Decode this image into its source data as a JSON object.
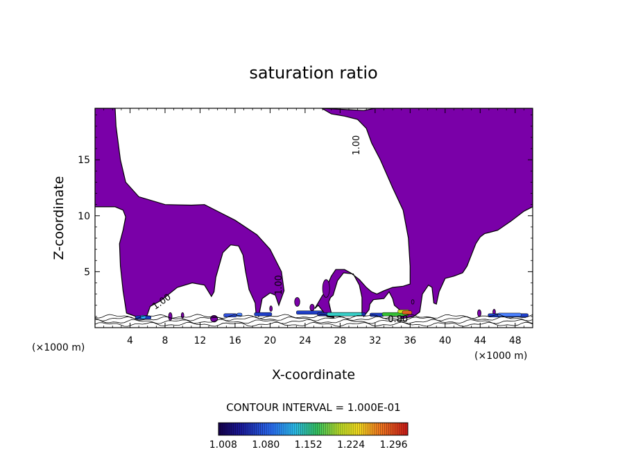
{
  "chart_data": {
    "type": "contour",
    "title": "saturation ratio",
    "xlabel": "X-coordinate",
    "ylabel": "Z-coordinate",
    "x_unit_label": "(×1000 m)",
    "x_unit_label_right": "(×1000 m)",
    "xlim": [
      0,
      50
    ],
    "ylim": [
      0,
      19.6
    ],
    "x_ticks": [
      4,
      8,
      12,
      16,
      20,
      24,
      28,
      32,
      36,
      40,
      44,
      48
    ],
    "x_tick_labels": [
      "4",
      "8",
      "12",
      "16",
      "20",
      "24",
      "28",
      "32",
      "36",
      "40",
      "44",
      "48"
    ],
    "y_ticks": [
      5,
      10,
      15
    ],
    "y_tick_labels": [
      "5",
      "10",
      "15"
    ],
    "contour_interval_text": "CONTOUR INTERVAL = 1.000E-01",
    "contour_labels": [
      {
        "text": "1.00",
        "x": 30.2,
        "z": 16.3,
        "angle": -90
      },
      {
        "text": "1.00",
        "x": 21.3,
        "z": 3.8,
        "angle": -90
      },
      {
        "text": "1.00",
        "x": 7.8,
        "z": 2.1,
        "angle": -35
      },
      {
        "text": "0.80",
        "x": 34.6,
        "z": 0.5,
        "angle": 0
      }
    ],
    "fill_color": "#7a00a8",
    "colorbar": {
      "tick_labels": [
        "1.008",
        "1.080",
        "1.152",
        "1.224",
        "1.296"
      ],
      "range": [
        1.0,
        1.32
      ]
    },
    "regions": [
      {
        "name": "supersaturated",
        "level": 1.0,
        "outline": [
          [
            0.0,
            19.6
          ],
          [
            2.3,
            19.6
          ],
          [
            2.4,
            18.0
          ],
          [
            2.9,
            15.0
          ],
          [
            3.5,
            13.0
          ],
          [
            5.0,
            11.7
          ],
          [
            8.0,
            11.0
          ],
          [
            11.0,
            10.95
          ],
          [
            12.5,
            11.0
          ],
          [
            13.5,
            10.6
          ],
          [
            16.0,
            9.6
          ],
          [
            18.5,
            8.3
          ],
          [
            20.0,
            7.0
          ],
          [
            21.3,
            5.0
          ],
          [
            21.6,
            3.3
          ],
          [
            21.0,
            2.0
          ],
          [
            20.6,
            2.9
          ],
          [
            20.0,
            3.1
          ],
          [
            19.1,
            2.6
          ],
          [
            18.7,
            1.0
          ],
          [
            18.4,
            1.2
          ],
          [
            18.3,
            2.2
          ],
          [
            17.6,
            3.4
          ],
          [
            17.2,
            5.0
          ],
          [
            16.9,
            6.5
          ],
          [
            16.4,
            7.3
          ],
          [
            15.5,
            7.4
          ],
          [
            14.6,
            6.7
          ],
          [
            13.8,
            4.5
          ],
          [
            13.6,
            3.2
          ],
          [
            13.3,
            2.8
          ],
          [
            12.5,
            3.8
          ],
          [
            11.1,
            4.0
          ],
          [
            9.4,
            3.6
          ],
          [
            7.5,
            2.4
          ],
          [
            6.3,
            1.9
          ],
          [
            5.9,
            1.0
          ],
          [
            5.0,
            0.9
          ],
          [
            3.6,
            1.3
          ],
          [
            3.2,
            3.3
          ],
          [
            2.9,
            5.5
          ],
          [
            2.8,
            7.5
          ],
          [
            3.2,
            8.7
          ],
          [
            3.5,
            9.9
          ],
          [
            3.2,
            10.5
          ],
          [
            2.3,
            10.8
          ],
          [
            0.0,
            10.8
          ]
        ]
      },
      {
        "name": "supersaturated",
        "level": 1.0,
        "outline": [
          [
            25.9,
            19.6
          ],
          [
            30.7,
            19.4
          ],
          [
            32.0,
            19.6
          ],
          [
            50.0,
            19.6
          ],
          [
            50.0,
            10.8
          ],
          [
            49.0,
            10.4
          ],
          [
            47.5,
            9.5
          ],
          [
            46.0,
            8.7
          ],
          [
            45.0,
            8.5
          ],
          [
            44.5,
            8.4
          ],
          [
            44.0,
            8.1
          ],
          [
            43.5,
            7.5
          ],
          [
            43.0,
            6.5
          ],
          [
            42.5,
            5.5
          ],
          [
            42.0,
            4.9
          ],
          [
            41.0,
            4.6
          ],
          [
            40.0,
            4.4
          ],
          [
            39.3,
            3.2
          ],
          [
            39.0,
            2.1
          ],
          [
            38.7,
            2.2
          ],
          [
            38.5,
            3.6
          ],
          [
            38.1,
            3.8
          ],
          [
            37.4,
            3.0
          ],
          [
            37.1,
            1.4
          ],
          [
            36.4,
            1.0
          ],
          [
            35.0,
            0.8
          ],
          [
            34.8,
            1.6
          ],
          [
            34.2,
            2.0
          ],
          [
            34.0,
            2.6
          ],
          [
            33.6,
            3.2
          ],
          [
            33.0,
            2.6
          ],
          [
            31.8,
            2.5
          ],
          [
            31.4,
            2.1
          ],
          [
            31.3,
            1.6
          ],
          [
            30.7,
            1.0
          ],
          [
            30.5,
            1.3
          ],
          [
            30.5,
            2.7
          ],
          [
            30.2,
            3.8
          ],
          [
            29.5,
            4.8
          ],
          [
            28.4,
            4.9
          ],
          [
            27.7,
            4.2
          ],
          [
            27.2,
            2.9
          ],
          [
            26.9,
            2.7
          ],
          [
            26.7,
            2.3
          ],
          [
            27.0,
            1.3
          ],
          [
            27.3,
            0.9
          ],
          [
            26.5,
            1.0
          ],
          [
            26.0,
            1.5
          ],
          [
            25.5,
            2.0
          ],
          [
            25.1,
            1.7
          ],
          [
            26.0,
            2.9
          ],
          [
            26.4,
            3.2
          ],
          [
            26.6,
            3.9
          ],
          [
            27.0,
            4.6
          ],
          [
            27.5,
            5.2
          ],
          [
            28.5,
            5.2
          ],
          [
            29.2,
            4.9
          ],
          [
            30.2,
            4.3
          ],
          [
            31.0,
            3.6
          ],
          [
            31.6,
            3.2
          ],
          [
            32.2,
            3.0
          ],
          [
            33.0,
            3.3
          ],
          [
            34.0,
            3.6
          ],
          [
            35.2,
            3.7
          ],
          [
            36.0,
            3.9
          ],
          [
            36.0,
            5.5
          ],
          [
            35.8,
            8.0
          ],
          [
            35.2,
            10.5
          ],
          [
            34.0,
            12.5
          ],
          [
            32.6,
            15.0
          ],
          [
            31.6,
            16.5
          ],
          [
            31.0,
            17.8
          ],
          [
            30.0,
            18.6
          ],
          [
            28.5,
            18.9
          ],
          [
            27.0,
            19.1
          ]
        ]
      }
    ],
    "patches": [
      {
        "x": 26.4,
        "z": 3.5,
        "w": 0.8,
        "h": 1.6
      },
      {
        "x": 23.1,
        "z": 2.3,
        "w": 0.6,
        "h": 0.8
      },
      {
        "x": 24.8,
        "z": 1.8,
        "w": 0.5,
        "h": 0.6
      },
      {
        "x": 36.3,
        "z": 2.3,
        "w": 0.3,
        "h": 0.4
      },
      {
        "x": 8.6,
        "z": 1.0,
        "w": 0.4,
        "h": 0.7
      },
      {
        "x": 10.0,
        "z": 1.1,
        "w": 0.3,
        "h": 0.5
      },
      {
        "x": 13.6,
        "z": 0.8,
        "w": 0.8,
        "h": 0.6
      },
      {
        "x": 20.1,
        "z": 1.7,
        "w": 0.3,
        "h": 0.5
      },
      {
        "x": 43.9,
        "z": 1.3,
        "w": 0.4,
        "h": 0.6
      },
      {
        "x": 45.6,
        "z": 1.4,
        "w": 0.3,
        "h": 0.5
      }
    ],
    "streaks": [
      {
        "x0": 4.6,
        "x1": 6.4,
        "z": 0.9,
        "color": "#1f3fc8"
      },
      {
        "x0": 5.2,
        "x1": 5.8,
        "z": 0.95,
        "color": "#2ab0ff"
      },
      {
        "x0": 14.7,
        "x1": 16.2,
        "z": 1.1,
        "color": "#3050d8"
      },
      {
        "x0": 16.2,
        "x1": 16.8,
        "z": 1.15,
        "color": "#4a80ff"
      },
      {
        "x0": 18.2,
        "x1": 20.2,
        "z": 1.2,
        "color": "#1f3fc8"
      },
      {
        "x0": 23.0,
        "x1": 26.0,
        "z": 1.35,
        "color": "#1f3fc8"
      },
      {
        "x0": 25.4,
        "x1": 30.9,
        "z": 1.2,
        "color": "#1c2fb0"
      },
      {
        "x0": 26.5,
        "x1": 30.5,
        "z": 1.2,
        "color": "#36d0c8"
      },
      {
        "x0": 31.4,
        "x1": 33.0,
        "z": 1.15,
        "color": "#1f3fc8"
      },
      {
        "x0": 32.8,
        "x1": 35.8,
        "z": 1.2,
        "color": "#33c033"
      },
      {
        "x0": 34.6,
        "x1": 35.9,
        "z": 1.45,
        "color": "#c8e020"
      },
      {
        "x0": 35.1,
        "x1": 36.2,
        "z": 1.35,
        "color": "#e06020"
      },
      {
        "x0": 44.9,
        "x1": 49.5,
        "z": 1.1,
        "color": "#1f3fc8"
      },
      {
        "x0": 46.0,
        "x1": 48.7,
        "z": 1.15,
        "color": "#4a80ff"
      }
    ],
    "ground_contours": [
      0.3,
      0.55,
      0.8,
      1.0
    ]
  }
}
